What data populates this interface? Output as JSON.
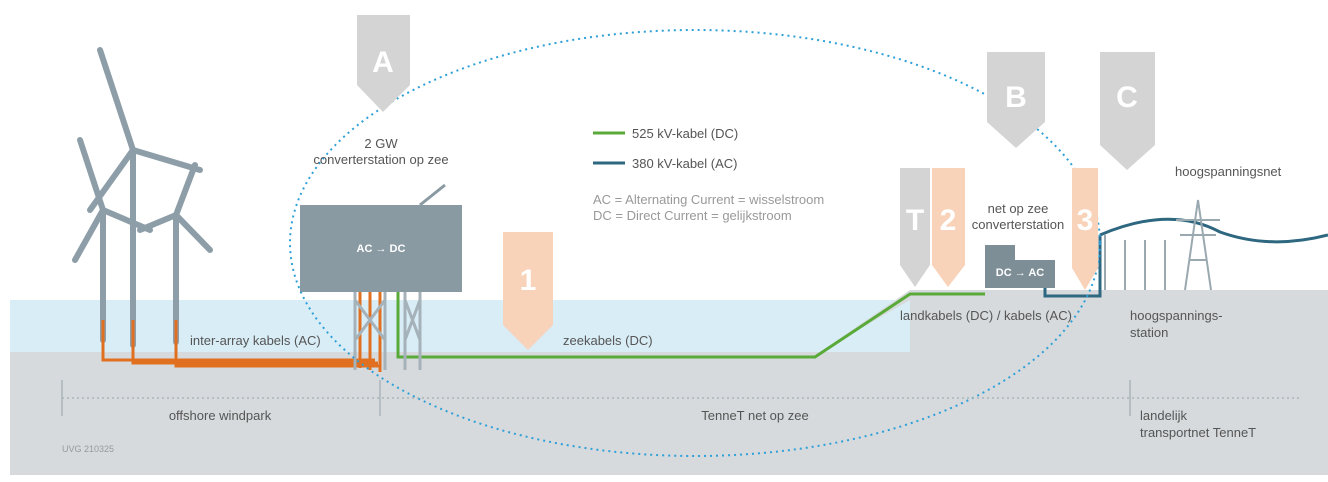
{
  "markers": {
    "a": "A",
    "b": "B",
    "c": "C",
    "t": "T",
    "one": "1",
    "two": "2",
    "three": "3"
  },
  "platform": {
    "capacity": "2 GW",
    "name": "converterstation op zee",
    "conversion": "AC → DC"
  },
  "legend": {
    "dc_cable": "525 kV-kabel (DC)",
    "ac_cable": "380 kV-kabel (AC)",
    "ac_note": "AC = Alternating Current = wisselstroom",
    "dc_note": "DC = Direct Current = gelijkstroom"
  },
  "land_station": {
    "line1": "net op zee",
    "line2": "converterstation",
    "conversion": "DC → AC"
  },
  "grid": "hoogspanningsnet",
  "cables": {
    "inter_array": "inter-array kabels (AC)",
    "sea": "zeekabels (DC)",
    "land": "landkabels (DC) / kabels (AC)"
  },
  "substation": {
    "line1": "hoogspannings-",
    "line2": "station"
  },
  "zones": {
    "windpark": "offshore windpark",
    "tennet_sea": "TenneT net op zee",
    "national_line1": "landelijk",
    "national_line2": "transportnet TenneT"
  },
  "code": "UVG 210325"
}
